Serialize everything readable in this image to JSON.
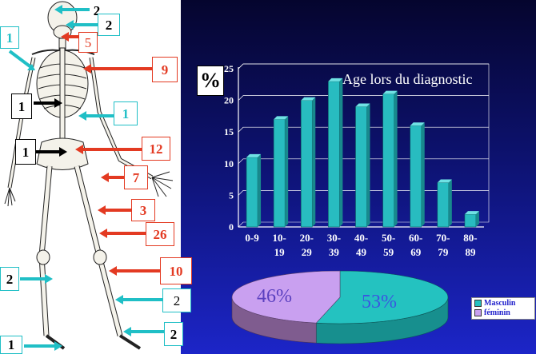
{
  "figure_labels": {
    "skull_top": "2",
    "skull_side": "2",
    "face": "5",
    "shoulder": "1",
    "chest": "9",
    "spine": "1",
    "ribs_right": "1",
    "pelvis": "1",
    "hip": "12",
    "hand": "7",
    "femur": "3",
    "femur_mid": "26",
    "knee": "10",
    "tibia_left": "2",
    "tibia_right": "2",
    "ankle": "2",
    "foot": "1"
  },
  "colors": {
    "bar": "#28bcc0",
    "pie_masculin": "#24c2c0",
    "pie_feminin": "#c9a0f0",
    "arrow_red": "#e33a22",
    "arrow_cyan": "#20bfc6",
    "arrow_black": "#000000"
  },
  "chart_data": [
    {
      "type": "bar",
      "title": "Age lors du diagnostic",
      "ylabel": "%",
      "categories": [
        "0-9",
        "10-19",
        "20-29",
        "30-39",
        "40-49",
        "50-59",
        "60-69",
        "70-79",
        "80-89"
      ],
      "category_lines": [
        [
          "0-9"
        ],
        [
          "10-",
          "19"
        ],
        [
          "20-",
          "29"
        ],
        [
          "30-",
          "39"
        ],
        [
          "40-",
          "49"
        ],
        [
          "50-",
          "59"
        ],
        [
          "60-",
          "69"
        ],
        [
          "70-",
          "79"
        ],
        [
          "80-",
          "89"
        ]
      ],
      "values": [
        11,
        17,
        20,
        23,
        19,
        21,
        16,
        7,
        2
      ],
      "ylim": [
        0,
        25
      ],
      "yticks": [
        0,
        5,
        10,
        15,
        20,
        25
      ],
      "grid": true
    },
    {
      "type": "pie",
      "slices": [
        {
          "name": "Masculin",
          "value": 53,
          "label": "53%"
        },
        {
          "name": "féminin",
          "value": 46,
          "label": "46%"
        }
      ],
      "legend": "right"
    }
  ]
}
